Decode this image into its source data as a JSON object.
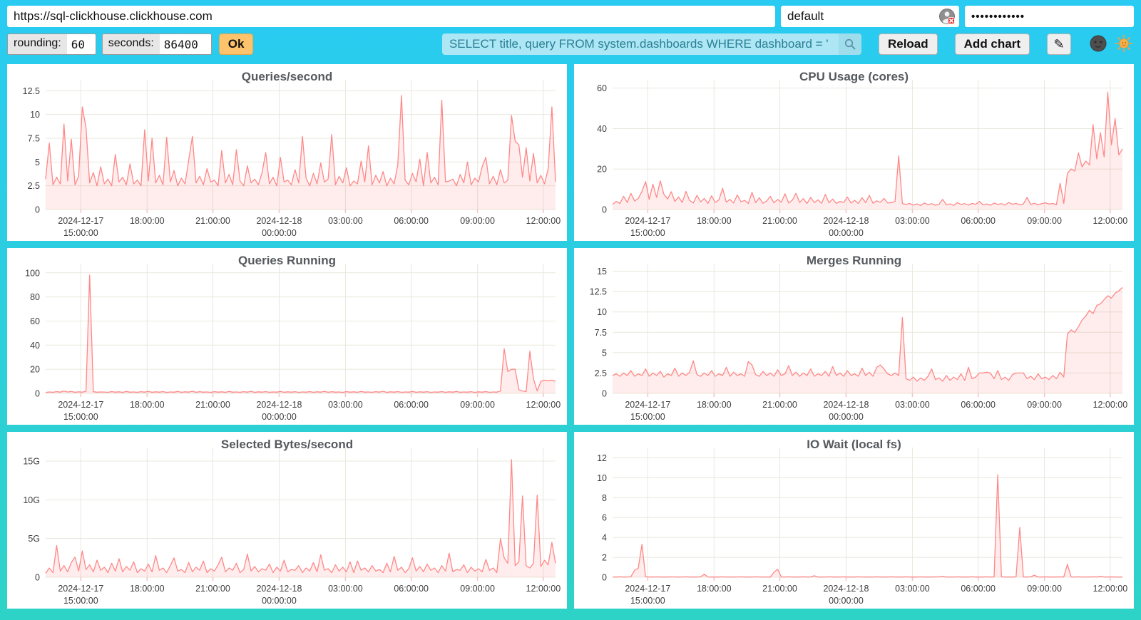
{
  "topbar": {
    "url": "https://sql-clickhouse.clickhouse.com",
    "user": "default",
    "password_masked": "••••••••••••"
  },
  "toolbar": {
    "rounding_label": "rounding:",
    "rounding_value": "60",
    "seconds_label": "seconds:",
    "seconds_value": "86400",
    "ok_label": "Ok",
    "query_value": "SELECT title, query FROM system.dashboards WHERE dashboard = '",
    "reload_label": "Reload",
    "add_chart_label": "Add chart",
    "edit_glyph": "✎"
  },
  "icons": {
    "search_icon": "magnifier",
    "password_manager_icon": "masked-user-with-red-x",
    "edit_icon": "pencil",
    "dark_theme_icon": "new-moon-face",
    "light_theme_icon": "sun-with-face"
  },
  "colors": {
    "background_top": "#29CBF2",
    "background_bottom": "#2ED3C7",
    "line": "#FF8888",
    "area_fill": "rgba(255,136,136,0.16)",
    "grid": "#E8E8DE",
    "axis_tick": "#F6C2C2",
    "ok_button": "#FFC36B",
    "query_bg": "#ADE6F4",
    "query_text": "#2A7F95"
  },
  "chart_data": [
    {
      "type": "line",
      "title": "Queries/second",
      "ylim": [
        0,
        13.2
      ],
      "ymax": 13.2,
      "line_color": "#FF8888",
      "fill_color": "rgba(255,136,136,0.16)",
      "grid_color": "#E8E8DE",
      "tick_color": "#F6C2C2",
      "yticks": [
        {
          "v": 0,
          "label": "0"
        },
        {
          "v": 2.5,
          "label": "2.5"
        },
        {
          "v": 5,
          "label": "5"
        },
        {
          "v": 7.5,
          "label": "7.5"
        },
        {
          "v": 10,
          "label": "10"
        },
        {
          "v": 12.5,
          "label": "12.5"
        }
      ],
      "xticks": [
        {
          "f": 0.069,
          "l1": "2024-12-17",
          "l2": "15:00:00"
        },
        {
          "f": 0.199,
          "l1": "18:00:00"
        },
        {
          "f": 0.328,
          "l1": "21:00:00"
        },
        {
          "f": 0.458,
          "l1": "2024-12-18",
          "l2": "00:00:00"
        },
        {
          "f": 0.588,
          "l1": "03:00:00"
        },
        {
          "f": 0.717,
          "l1": "06:00:00"
        },
        {
          "f": 0.847,
          "l1": "09:00:00"
        },
        {
          "f": 0.976,
          "l1": "12:00:00"
        }
      ],
      "values": [
        3.2,
        7,
        2.6,
        3.4,
        2.7,
        9,
        3,
        7.4,
        2.6,
        3.5,
        10.8,
        8.6,
        2.8,
        3.9,
        2.5,
        4.5,
        2.7,
        3.2,
        2.5,
        5.8,
        2.9,
        3.4,
        2.6,
        4.8,
        2.7,
        3.1,
        2.5,
        8.4,
        3,
        7.5,
        2.8,
        3.6,
        2.6,
        7.6,
        2.9,
        4.1,
        2.5,
        3.3,
        2.7,
        5.2,
        7.7,
        2.8,
        3.5,
        2.6,
        4.3,
        2.9,
        3.1,
        2.5,
        6.2,
        2.8,
        3.7,
        2.6,
        6.3,
        3,
        2.5,
        4.6,
        2.8,
        3.2,
        2.6,
        3.9,
        6,
        2.7,
        3.4,
        2.5,
        5.5,
        2.9,
        3.1,
        2.6,
        4.2,
        2.8,
        7.7,
        3.3,
        2.5,
        3.8,
        2.7,
        4.9,
        2.9,
        3.2,
        7.9,
        2.6,
        3.5,
        2.8,
        4.4,
        2.5,
        3,
        2.7,
        5.1,
        2.9,
        6.7,
        2.6,
        3.6,
        2.8,
        4,
        2.5,
        3.3,
        2.7,
        4.7,
        12,
        3.1,
        2.6,
        3.8,
        2.9,
        5.3,
        2.5,
        6,
        2.8,
        3.4,
        2.6,
        11.5,
        2.9,
        3,
        3.2,
        2.5,
        3.7,
        2.8,
        5,
        2.6,
        3.3,
        2.9,
        4.5,
        5.5,
        2.7,
        3.5,
        2.6,
        4.2,
        2.8,
        3.1,
        9.9,
        7.2,
        6.8,
        3.4,
        6.5,
        3,
        5.9,
        2.8,
        3.6,
        2.7,
        4.3,
        10.8,
        2.9
      ]
    },
    {
      "type": "line",
      "title": "CPU Usage (cores)",
      "ylim": [
        0,
        62
      ],
      "ymax": 62,
      "line_color": "#FF8888",
      "fill_color": "rgba(255,136,136,0.16)",
      "grid_color": "#E8E8DE",
      "tick_color": "#F6C2C2",
      "yticks": [
        {
          "v": 0,
          "label": "0"
        },
        {
          "v": 20,
          "label": "20"
        },
        {
          "v": 40,
          "label": "40"
        },
        {
          "v": 60,
          "label": "60"
        }
      ],
      "xticks": [
        {
          "f": 0.069,
          "l1": "2024-12-17",
          "l2": "15:00:00"
        },
        {
          "f": 0.199,
          "l1": "18:00:00"
        },
        {
          "f": 0.328,
          "l1": "21:00:00"
        },
        {
          "f": 0.458,
          "l1": "2024-12-18",
          "l2": "00:00:00"
        },
        {
          "f": 0.588,
          "l1": "03:00:00"
        },
        {
          "f": 0.717,
          "l1": "06:00:00"
        },
        {
          "f": 0.847,
          "l1": "09:00:00"
        },
        {
          "f": 0.976,
          "l1": "12:00:00"
        }
      ],
      "values": [
        2.5,
        4,
        3,
        6.5,
        3.5,
        8,
        4.2,
        5.5,
        9,
        13.8,
        5,
        12.5,
        6,
        14.2,
        7.5,
        5.2,
        8.8,
        4,
        6.2,
        3.5,
        9,
        4.5,
        3.2,
        7,
        3.8,
        5.5,
        3,
        6.8,
        3.5,
        4.8,
        10.5,
        3.6,
        5,
        3.2,
        7.2,
        3.8,
        4.5,
        3,
        8.5,
        3.4,
        5.8,
        3.1,
        4.2,
        6.5,
        3.3,
        5,
        3.6,
        7.8,
        3.2,
        4.6,
        8,
        3.5,
        5.4,
        3,
        6,
        3.4,
        4.8,
        3.1,
        7.5,
        3.3,
        5.2,
        3,
        4,
        3.5,
        6.2,
        3.2,
        4.5,
        3,
        5.8,
        3.4,
        7,
        3.1,
        4.3,
        3.6,
        5.5,
        3.2,
        3.4,
        4,
        26.5,
        3,
        2.5,
        3,
        2.2,
        2.8,
        2,
        3.2,
        2.4,
        2.9,
        2.1,
        2.6,
        5,
        2.3,
        2.8,
        2,
        3.4,
        2.5,
        2.9,
        2.2,
        3,
        2.6,
        4,
        2.3,
        2.8,
        2.1,
        3.2,
        2.5,
        2.9,
        2.2,
        3.5,
        2.6,
        3,
        2.4,
        2.8,
        6,
        2.5,
        3.1,
        2.3,
        2.9,
        3.3,
        2.7,
        3,
        2.4,
        13,
        3,
        18,
        20,
        19,
        28,
        21,
        24,
        22,
        42,
        25,
        38,
        26,
        58,
        32,
        45,
        27,
        30
      ]
    },
    {
      "type": "line",
      "title": "Queries Running",
      "ylim": [
        0,
        104
      ],
      "ymax": 104,
      "line_color": "#FF8888",
      "fill_color": "rgba(255,136,136,0.16)",
      "grid_color": "#E8E8DE",
      "tick_color": "#F6C2C2",
      "yticks": [
        {
          "v": 0,
          "label": "0"
        },
        {
          "v": 20,
          "label": "20"
        },
        {
          "v": 40,
          "label": "40"
        },
        {
          "v": 60,
          "label": "60"
        },
        {
          "v": 80,
          "label": "80"
        },
        {
          "v": 100,
          "label": "100"
        }
      ],
      "xticks": [
        {
          "f": 0.069,
          "l1": "2024-12-17",
          "l2": "15:00:00"
        },
        {
          "f": 0.199,
          "l1": "18:00:00"
        },
        {
          "f": 0.328,
          "l1": "21:00:00"
        },
        {
          "f": 0.458,
          "l1": "2024-12-18",
          "l2": "00:00:00"
        },
        {
          "f": 0.588,
          "l1": "03:00:00"
        },
        {
          "f": 0.717,
          "l1": "06:00:00"
        },
        {
          "f": 0.847,
          "l1": "09:00:00"
        },
        {
          "f": 0.976,
          "l1": "12:00:00"
        }
      ],
      "values": [
        0.8,
        1.2,
        0.9,
        1.5,
        1,
        2,
        1.1,
        1.6,
        0.9,
        1.3,
        1,
        1.8,
        98,
        1.4,
        1,
        1.2,
        1.1,
        0.9,
        1.5,
        1,
        1.3,
        0.8,
        1.6,
        1,
        1.2,
        0.9,
        1.4,
        1,
        1.7,
        0.9,
        1.3,
        1,
        1.5,
        0.8,
        1.2,
        1,
        1.6,
        0.9,
        1.3,
        1,
        1.8,
        0.9,
        1.4,
        1,
        1.2,
        0.8,
        1.5,
        1,
        1.3,
        0.9,
        1.6,
        1,
        1.2,
        0.9,
        1.4,
        1,
        1.7,
        0.8,
        1.3,
        1,
        1.5,
        0.9,
        1.2,
        1,
        1.6,
        0.9,
        1.3,
        1,
        1.4,
        0.8,
        1.2,
        1,
        1.5,
        0.9,
        1.3,
        1,
        1.7,
        0.9,
        1.4,
        1,
        1.2,
        0.8,
        1.5,
        1,
        1.3,
        0.9,
        1.6,
        1,
        1.2,
        0.9,
        1.4,
        1,
        1.8,
        0.8,
        1.3,
        1,
        1.5,
        0.9,
        1.2,
        1,
        1.6,
        0.9,
        1.3,
        1,
        1.4,
        0.8,
        1.2,
        1,
        1.5,
        0.9,
        1.3,
        1,
        1.6,
        0.9,
        1.2,
        1,
        1.4,
        0.8,
        1.3,
        1,
        1.5,
        0.9,
        1.2,
        1,
        2,
        37,
        18,
        20,
        20,
        3,
        2,
        1.5,
        35,
        12,
        2,
        10,
        11,
        10.5,
        11,
        10
      ]
    },
    {
      "type": "line",
      "title": "Merges Running",
      "ylim": [
        0,
        15.4
      ],
      "ymax": 15.4,
      "line_color": "#FF8888",
      "fill_color": "rgba(255,136,136,0.16)",
      "grid_color": "#E8E8DE",
      "tick_color": "#F6C2C2",
      "yticks": [
        {
          "v": 0,
          "label": "0"
        },
        {
          "v": 2.5,
          "label": "2.5"
        },
        {
          "v": 5,
          "label": "5"
        },
        {
          "v": 7.5,
          "label": "7.5"
        },
        {
          "v": 10,
          "label": "10"
        },
        {
          "v": 12.5,
          "label": "12.5"
        },
        {
          "v": 15,
          "label": "15"
        }
      ],
      "xticks": [
        {
          "f": 0.069,
          "l1": "2024-12-17",
          "l2": "15:00:00"
        },
        {
          "f": 0.199,
          "l1": "18:00:00"
        },
        {
          "f": 0.328,
          "l1": "21:00:00"
        },
        {
          "f": 0.458,
          "l1": "2024-12-18",
          "l2": "00:00:00"
        },
        {
          "f": 0.588,
          "l1": "03:00:00"
        },
        {
          "f": 0.717,
          "l1": "06:00:00"
        },
        {
          "f": 0.847,
          "l1": "09:00:00"
        },
        {
          "f": 0.976,
          "l1": "12:00:00"
        }
      ],
      "values": [
        2.2,
        2.4,
        2.1,
        2.5,
        2.2,
        2.8,
        2.1,
        2.4,
        2.2,
        3,
        2.1,
        2.5,
        2.2,
        2.7,
        2,
        2.4,
        2.2,
        3.1,
        2.1,
        2.5,
        2.2,
        2.6,
        4,
        2.3,
        2.1,
        2.5,
        2.2,
        2.8,
        2.1,
        2.4,
        2.2,
        3.2,
        2.1,
        2.6,
        2.2,
        2.4,
        2.1,
        3.9,
        3.5,
        2.3,
        2.1,
        2.7,
        2.2,
        2.5,
        2.1,
        2.9,
        2.2,
        2.4,
        3.4,
        2.2,
        2.6,
        2.1,
        2.5,
        2.2,
        3,
        2.1,
        2.4,
        2.2,
        2.7,
        2.1,
        3.3,
        2.2,
        2.5,
        2.1,
        2.8,
        2.2,
        2.4,
        2.1,
        3.1,
        2.2,
        2.6,
        2.1,
        3.2,
        3.5,
        3,
        2.4,
        2.2,
        2.5,
        2.2,
        9.3,
        1.8,
        1.6,
        2,
        1.5,
        1.9,
        1.6,
        2.1,
        3,
        1.7,
        1.9,
        1.5,
        2.2,
        1.6,
        2,
        1.7,
        2.4,
        1.6,
        3.2,
        1.8,
        2,
        2.5,
        2.5,
        2.6,
        2.5,
        1.8,
        2.8,
        1.7,
        2,
        1.6,
        2.3,
        2.5,
        2.5,
        2.5,
        1.8,
        2.1,
        1.7,
        2.4,
        1.8,
        2,
        1.7,
        2.2,
        1.8,
        2.6,
        2,
        7.3,
        7.8,
        7.5,
        8.2,
        9,
        9.5,
        10.2,
        9.8,
        10.8,
        11,
        11.5,
        12,
        11.7,
        12.3,
        12.6,
        13
      ]
    },
    {
      "type": "line",
      "title": "Selected Bytes/second",
      "ylim": [
        0,
        16.2
      ],
      "ymax": 16.2,
      "unit": "G",
      "line_color": "#FF8888",
      "fill_color": "rgba(255,136,136,0.16)",
      "grid_color": "#E8E8DE",
      "tick_color": "#F6C2C2",
      "yticks": [
        {
          "v": 0,
          "label": "0"
        },
        {
          "v": 5,
          "label": "5G"
        },
        {
          "v": 10,
          "label": "10G"
        },
        {
          "v": 15,
          "label": "15G"
        }
      ],
      "xticks": [
        {
          "f": 0.069,
          "l1": "2024-12-17",
          "l2": "15:00:00"
        },
        {
          "f": 0.199,
          "l1": "18:00:00"
        },
        {
          "f": 0.328,
          "l1": "21:00:00"
        },
        {
          "f": 0.458,
          "l1": "2024-12-18",
          "l2": "00:00:00"
        },
        {
          "f": 0.588,
          "l1": "03:00:00"
        },
        {
          "f": 0.717,
          "l1": "06:00:00"
        },
        {
          "f": 0.847,
          "l1": "09:00:00"
        },
        {
          "f": 0.976,
          "l1": "12:00:00"
        }
      ],
      "values": [
        0.5,
        1.2,
        0.6,
        4.1,
        0.8,
        1.5,
        0.7,
        1.9,
        2.6,
        0.8,
        3.4,
        1,
        1.6,
        0.7,
        2.2,
        0.9,
        1.3,
        0.6,
        1.8,
        0.8,
        2.4,
        0.7,
        1.4,
        0.9,
        2,
        0.6,
        1.1,
        0.8,
        1.7,
        0.7,
        2.8,
        0.9,
        1.2,
        0.6,
        1.5,
        2.5,
        0.8,
        1,
        0.6,
        1.9,
        0.7,
        1.3,
        0.9,
        2.1,
        0.6,
        1.1,
        0.8,
        1.6,
        2.6,
        0.7,
        1.2,
        0.9,
        1.8,
        0.6,
        1,
        3,
        0.8,
        1.4,
        0.7,
        1.1,
        0.9,
        1.7,
        0.6,
        1.3,
        0.8,
        2.2,
        0.7,
        1,
        0.9,
        1.5,
        0.6,
        1.2,
        0.8,
        1.9,
        0.7,
        2.9,
        0.9,
        1.1,
        0.6,
        1.6,
        0.8,
        1.3,
        0.7,
        2,
        0.6,
        2.1,
        0.9,
        1.2,
        0.7,
        1.5,
        0.8,
        1,
        0.6,
        1.8,
        0.7,
        2.7,
        0.9,
        1.3,
        0.6,
        1.1,
        2.5,
        0.8,
        1.4,
        0.7,
        1.7,
        0.9,
        1.2,
        0.6,
        1.5,
        0.8,
        3.1,
        0.7,
        1,
        0.9,
        1.6,
        0.6,
        1.3,
        0.8,
        1.1,
        0.7,
        2.3,
        0.9,
        1.2,
        0.6,
        5,
        2.5,
        1.8,
        15.2,
        1.5,
        2,
        10.5,
        1.5,
        1.2,
        1.8,
        10.6,
        1.4,
        2.2,
        1.6,
        4.5,
        1.8
      ]
    },
    {
      "type": "line",
      "title": "IO Wait (local fs)",
      "ylim": [
        0,
        12.6
      ],
      "ymax": 12.6,
      "line_color": "#FF8888",
      "fill_color": "rgba(255,136,136,0.16)",
      "grid_color": "#E8E8DE",
      "tick_color": "#F6C2C2",
      "yticks": [
        {
          "v": 0,
          "label": "0"
        },
        {
          "v": 2,
          "label": "2"
        },
        {
          "v": 4,
          "label": "4"
        },
        {
          "v": 6,
          "label": "6"
        },
        {
          "v": 8,
          "label": "8"
        },
        {
          "v": 10,
          "label": "10"
        },
        {
          "v": 12,
          "label": "12"
        }
      ],
      "xticks": [
        {
          "f": 0.069,
          "l1": "2024-12-17",
          "l2": "15:00:00"
        },
        {
          "f": 0.199,
          "l1": "18:00:00"
        },
        {
          "f": 0.328,
          "l1": "21:00:00"
        },
        {
          "f": 0.458,
          "l1": "2024-12-18",
          "l2": "00:00:00"
        },
        {
          "f": 0.588,
          "l1": "03:00:00"
        },
        {
          "f": 0.717,
          "l1": "06:00:00"
        },
        {
          "f": 0.847,
          "l1": "09:00:00"
        },
        {
          "f": 0.976,
          "l1": "12:00:00"
        }
      ],
      "values": [
        0.03,
        0.02,
        0.04,
        0.02,
        0.03,
        0.05,
        0.7,
        0.9,
        3.3,
        0.05,
        0.03,
        0.02,
        0.04,
        0.02,
        0.03,
        0.02,
        0.04,
        0.03,
        0.02,
        0.03,
        0.04,
        0.02,
        0.03,
        0.02,
        0.04,
        0.3,
        0.03,
        0.02,
        0.03,
        0.02,
        0.04,
        0.02,
        0.03,
        0.02,
        0.03,
        0.04,
        0.02,
        0.03,
        0.02,
        0.04,
        0.03,
        0.02,
        0.03,
        0.02,
        0.5,
        0.8,
        0.03,
        0.02,
        0.04,
        0.02,
        0.03,
        0.02,
        0.04,
        0.02,
        0.03,
        0.15,
        0.02,
        0.03,
        0.02,
        0.04,
        0.02,
        0.03,
        0.02,
        0.04,
        0.02,
        0.03,
        0.02,
        0.04,
        0.03,
        0.02,
        0.03,
        0.02,
        0.04,
        0.02,
        0.03,
        0.02,
        0.04,
        0.02,
        0.03,
        0.02,
        0.04,
        0.02,
        0.03,
        0.02,
        0.04,
        0.02,
        0.03,
        0.02,
        0.04,
        0.03,
        0.1,
        0.02,
        0.03,
        0.02,
        0.04,
        0.02,
        0.03,
        0.02,
        0.04,
        0.02,
        0.03,
        0.02,
        0.04,
        0.02,
        0.03,
        10.3,
        0.04,
        0.02,
        0.03,
        0.02,
        0.04,
        5,
        0.03,
        0.02,
        0.04,
        0.2,
        0.03,
        0.02,
        0.04,
        0.02,
        0.03,
        0.02,
        0.04,
        0.02,
        1.3,
        0.03,
        0.02,
        0.04,
        0.02,
        0.03,
        0.02,
        0.04,
        0.02,
        0.1,
        0.03,
        0.02,
        0.04,
        0.02,
        0.03,
        0.02
      ]
    }
  ]
}
